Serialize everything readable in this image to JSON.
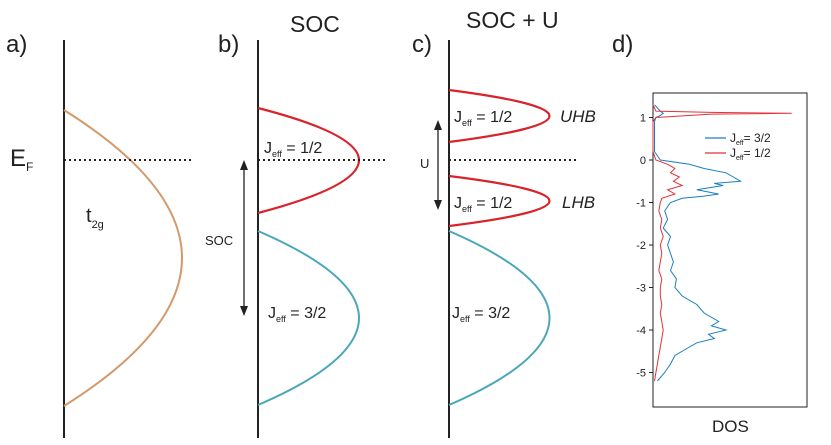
{
  "panels": {
    "a": {
      "label": "a)",
      "ef": "E",
      "ef_sub": "F",
      "band": "t",
      "band_sub": "2g"
    },
    "b": {
      "label": "b)",
      "title": "SOC",
      "upper": {
        "j": "J",
        "sub": "eff",
        "val": " = 1/2"
      },
      "lower": {
        "j": "J",
        "sub": "eff",
        "val": " = 3/2"
      },
      "arrow_label": "SOC"
    },
    "c": {
      "label": "c)",
      "title": "SOC + U",
      "uhb": {
        "j": "J",
        "sub": "eff",
        "val": " = 1/2",
        "tag": "UHB"
      },
      "lhb": {
        "j": "J",
        "sub": "eff",
        "val": " = 1/2",
        "tag": "LHB"
      },
      "lower": {
        "j": "J",
        "sub": "eff",
        "val": " = 3/2"
      },
      "arrow_label": "U"
    },
    "d": {
      "label": "d)"
    }
  },
  "colors": {
    "t2g": "#d4996a",
    "j12": "#d9232a",
    "j32": "#4aa7b8",
    "dos32": "#1a7fc1",
    "dos12": "#e2323a",
    "axis": "#222222"
  },
  "chart_data": {
    "type": "line",
    "xlabel": "DOS",
    "ylabel": "",
    "ylim": [
      -5.3,
      1.7
    ],
    "yticks": [
      "1",
      "0",
      "-1",
      "-2",
      "-3",
      "-4",
      "-5"
    ],
    "legend": "top-right",
    "series": [
      {
        "name": "J",
        "name_sub": "eff",
        "name_rest": "= 3/2",
        "color": "#1a7fc1",
        "y": [
          1.3,
          1.15,
          1.1,
          1.05,
          1.0,
          0.9,
          0.5,
          0.2,
          0.0,
          -0.1,
          -0.2,
          -0.3,
          -0.4,
          -0.5,
          -0.55,
          -0.6,
          -0.7,
          -0.8,
          -0.85,
          -0.9,
          -1.0,
          -1.2,
          -1.4,
          -1.6,
          -1.8,
          -2.0,
          -2.2,
          -2.4,
          -2.6,
          -2.8,
          -3.0,
          -3.2,
          -3.4,
          -3.6,
          -3.8,
          -3.9,
          -4.0,
          -4.1,
          -4.2,
          -4.3,
          -4.4,
          -4.6,
          -4.8,
          -5.0,
          -5.2
        ],
        "x": [
          0.01,
          0.05,
          0.07,
          0.05,
          0.02,
          0.01,
          0.01,
          0.01,
          0.05,
          0.25,
          0.35,
          0.5,
          0.55,
          0.6,
          0.42,
          0.48,
          0.3,
          0.45,
          0.35,
          0.2,
          0.12,
          0.08,
          0.1,
          0.07,
          0.12,
          0.1,
          0.12,
          0.14,
          0.12,
          0.16,
          0.15,
          0.2,
          0.3,
          0.35,
          0.45,
          0.4,
          0.5,
          0.38,
          0.42,
          0.3,
          0.25,
          0.15,
          0.12,
          0.08,
          0.03
        ]
      },
      {
        "name": "J",
        "name_sub": "eff",
        "name_rest": "= 1/2",
        "color": "#e2323a",
        "y": [
          1.3,
          1.15,
          1.12,
          1.1,
          1.08,
          1.0,
          0.9,
          0.5,
          0.2,
          0.0,
          -0.1,
          -0.2,
          -0.3,
          -0.4,
          -0.5,
          -0.6,
          -0.7,
          -0.8,
          -0.9,
          -1.0,
          -1.2,
          -1.4,
          -1.6,
          -1.8,
          -2.0,
          -2.2,
          -2.4,
          -2.6,
          -2.8,
          -3.0,
          -3.2,
          -3.4,
          -3.6,
          -3.8,
          -4.0,
          -4.2,
          -4.4,
          -4.6,
          -4.8,
          -5.0,
          -5.2
        ],
        "x": [
          0.0,
          0.02,
          0.4,
          0.95,
          0.4,
          0.02,
          0.0,
          0.0,
          0.0,
          0.02,
          0.1,
          0.15,
          0.12,
          0.18,
          0.14,
          0.2,
          0.1,
          0.15,
          0.06,
          0.05,
          0.04,
          0.06,
          0.05,
          0.07,
          0.05,
          0.06,
          0.05,
          0.04,
          0.06,
          0.05,
          0.05,
          0.06,
          0.05,
          0.06,
          0.07,
          0.06,
          0.05,
          0.04,
          0.03,
          0.02,
          0.01
        ]
      }
    ]
  }
}
